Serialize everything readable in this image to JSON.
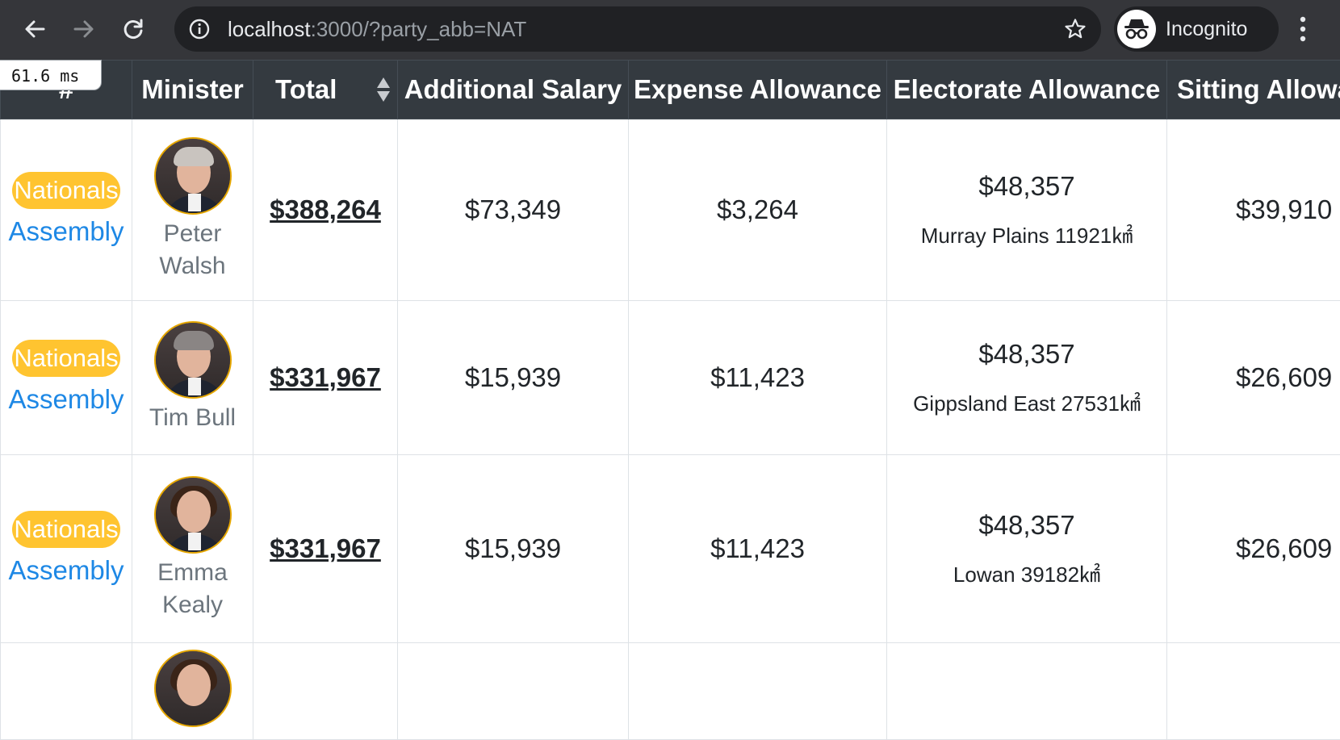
{
  "browser": {
    "url_host": "localhost",
    "url_rest": ":3000/?party_abb=NAT",
    "profile_label": "Incognito"
  },
  "timing": "61.6 ms",
  "table": {
    "headers": {
      "index": "#",
      "minister": "Minister",
      "total": "Total",
      "additional_salary": "Additional Salary",
      "expense_allowance": "Expense Allowance",
      "electorate_allowance": "Electorate Allowance",
      "sitting_allowance": "Sitting Allowa"
    },
    "rows": [
      {
        "party": "Nationals",
        "house": "Assembly",
        "name_line1": "Peter",
        "name_line2": "Walsh",
        "total": "$388,264",
        "additional_salary": "$73,349",
        "expense_allowance": "$3,264",
        "electorate_allowance": "$48,357",
        "electorate": "Murray Plains 11921㎢",
        "sitting_allowance": "$39,910"
      },
      {
        "party": "Nationals",
        "house": "Assembly",
        "name_line1": "Tim Bull",
        "name_line2": "",
        "total": "$331,967",
        "additional_salary": "$15,939",
        "expense_allowance": "$11,423",
        "electorate_allowance": "$48,357",
        "electorate": "Gippsland East 27531㎢",
        "sitting_allowance": "$26,609"
      },
      {
        "party": "Nationals",
        "house": "Assembly",
        "name_line1": "Emma",
        "name_line2": "Kealy",
        "total": "$331,967",
        "additional_salary": "$15,939",
        "expense_allowance": "$11,423",
        "electorate_allowance": "$48,357",
        "electorate": "Lowan 39182㎢",
        "sitting_allowance": "$26,609"
      }
    ]
  },
  "colors": {
    "chrome_bg": "#35363a",
    "omnibox_bg": "#202124",
    "table_header_bg": "#343a40",
    "party_badge": "#ffc430",
    "link_blue": "#1e88e5",
    "muted_text": "#6c757d",
    "portrait_border": "#e6a700"
  },
  "icons": {
    "back": "arrow-left",
    "forward": "arrow-right",
    "reload": "circular-arrow",
    "site_info": "info-circle",
    "bookmark": "star-outline",
    "incognito": "incognito-hat-glasses",
    "menu": "vertical-dots",
    "sort": "up-down-triangles"
  }
}
